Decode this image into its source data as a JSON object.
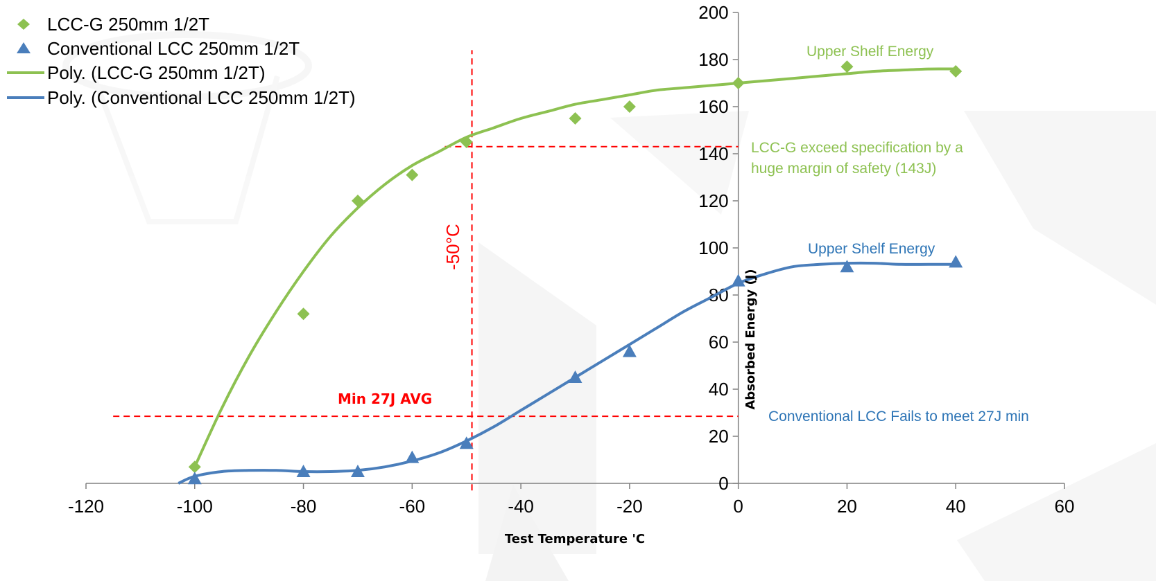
{
  "chart_data": {
    "type": "scatter",
    "title": "",
    "xlabel": "Test Temperature 'C",
    "ylabel": "Absorbed Energy  (J)",
    "xlim": [
      -120,
      60
    ],
    "ylim": [
      0,
      200
    ],
    "x_ticks": [
      -120,
      -100,
      -80,
      -60,
      -40,
      -20,
      0,
      20,
      40,
      60
    ],
    "y_ticks": [
      0,
      20,
      40,
      60,
      80,
      100,
      120,
      140,
      160,
      180,
      200
    ],
    "y_axis_crosses_at_x": 0,
    "grid": false,
    "legend": {
      "position": "top-left",
      "entries": [
        "LCC-G 250mm 1/2T",
        "Conventional LCC 250mm 1/2T",
        "Poly. (LCC-G 250mm 1/2T)",
        "Poly. (Conventional LCC 250mm 1/2T)"
      ]
    },
    "series": [
      {
        "name": "LCC-G 250mm 1/2T",
        "marker": "diamond",
        "color": "#8DC151",
        "x": [
          -100,
          -80,
          -70,
          -60,
          -50,
          -30,
          -20,
          0,
          20,
          40
        ],
        "y": [
          7,
          72,
          120,
          131,
          145,
          155,
          160,
          170,
          177,
          175
        ]
      },
      {
        "name": "Conventional LCC 250mm 1/2T",
        "marker": "triangle",
        "color": "#4A7EBB",
        "x": [
          -100,
          -80,
          -70,
          -60,
          -50,
          -30,
          -20,
          0,
          20,
          40
        ],
        "y": [
          2,
          5,
          5,
          11,
          17,
          45,
          56,
          86,
          92,
          94
        ]
      }
    ],
    "trendlines": [
      {
        "name": "Poly. (LCC-G 250mm 1/2T)",
        "color": "#8DC151",
        "x": [
          -100,
          -95,
          -90,
          -85,
          -80,
          -75,
          -70,
          -65,
          -60,
          -55,
          -50,
          -45,
          -40,
          -35,
          -30,
          -25,
          -20,
          -15,
          -10,
          -5,
          0,
          5,
          10,
          15,
          20,
          25,
          30,
          35,
          40
        ],
        "y": [
          7,
          32,
          54,
          73,
          90,
          105,
          117,
          127,
          135,
          141,
          147,
          151,
          155,
          158,
          161,
          163,
          165,
          167,
          168,
          169,
          170,
          171,
          172,
          173,
          174,
          175,
          175.5,
          176,
          176
        ]
      },
      {
        "name": "Poly. (Conventional LCC 250mm 1/2T)",
        "color": "#4A7EBB",
        "x": [
          -103,
          -100,
          -95,
          -90,
          -85,
          -80,
          -75,
          -70,
          -65,
          -60,
          -55,
          -50,
          -45,
          -40,
          -35,
          -30,
          -25,
          -20,
          -15,
          -10,
          -5,
          0,
          5,
          10,
          15,
          20,
          25,
          30,
          35,
          40
        ],
        "y": [
          0,
          3,
          5,
          5.5,
          5.5,
          5,
          5,
          5.5,
          7,
          9.5,
          13,
          18,
          24,
          31,
          38,
          45,
          52,
          59,
          66,
          73,
          79,
          85,
          89,
          92,
          93,
          93.5,
          93.5,
          93,
          93,
          93
        ]
      }
    ],
    "reference_lines": [
      {
        "orientation": "vertical",
        "x": -49,
        "y_range": [
          -3,
          184
        ],
        "color": "#FF0000",
        "style": "dashed",
        "label": "-50°C"
      },
      {
        "orientation": "horizontal",
        "y": 143,
        "x_range": [
          -54,
          0
        ],
        "color": "#FF0000",
        "style": "dashed"
      },
      {
        "orientation": "horizontal",
        "y": 28.5,
        "x_range": [
          -115,
          0
        ],
        "color": "#FF0000",
        "style": "dashed",
        "label": "Min 27J AVG"
      }
    ],
    "annotations": [
      {
        "name": "upper-shelf-green",
        "text": "Upper Shelf Energy",
        "color": "#8DC151"
      },
      {
        "name": "spec-note-line-1",
        "text": "LCC-G exceed specification by a",
        "color": "#8DC151"
      },
      {
        "name": "spec-note-line-2",
        "text": "huge margin of safety (143J)",
        "color": "#8DC151"
      },
      {
        "name": "upper-shelf-blue",
        "text": "Upper Shelf Energy",
        "color": "#2E75B6"
      },
      {
        "name": "fail-note",
        "text": "Conventional LCC Fails to meet 27J min",
        "color": "#2E75B6"
      }
    ]
  }
}
